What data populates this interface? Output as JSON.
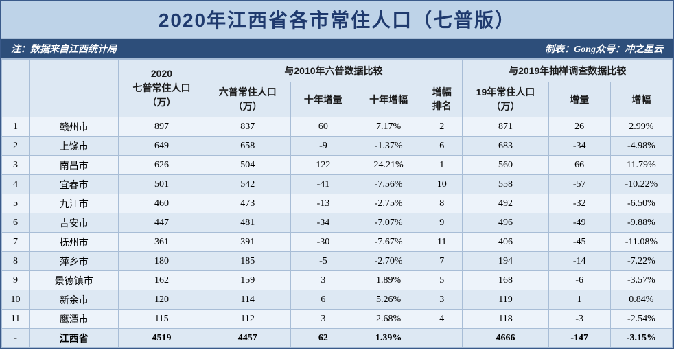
{
  "title": "2020年江西省各市常住人口（七普版）",
  "note_left": "注：数据来自江西统计局",
  "note_right": "制表：Gong众号：冲之星云",
  "headers": {
    "pop2020": "2020\n七普常住人口\n（万）",
    "group2010": "与2010年六普数据比较",
    "group2019": "与2019年抽样调查数据比较",
    "pop2010": "六普常住人口\n（万）",
    "inc10": "十年增量",
    "pct10": "十年增幅",
    "rank10": "增幅\n排名",
    "pop2019": "19年常住人口\n（万）",
    "inc19": "增量",
    "pct19": "增幅"
  },
  "rows": [
    {
      "rank": "1",
      "city": "赣州市",
      "p2020": "897",
      "p2010": "837",
      "inc10": "60",
      "pct10": "7.17%",
      "rk10": "2",
      "p2019": "871",
      "inc19": "26",
      "pct19": "2.99%"
    },
    {
      "rank": "2",
      "city": "上饶市",
      "p2020": "649",
      "p2010": "658",
      "inc10": "-9",
      "pct10": "-1.37%",
      "rk10": "6",
      "p2019": "683",
      "inc19": "-34",
      "pct19": "-4.98%"
    },
    {
      "rank": "3",
      "city": "南昌市",
      "p2020": "626",
      "p2010": "504",
      "inc10": "122",
      "pct10": "24.21%",
      "rk10": "1",
      "p2019": "560",
      "inc19": "66",
      "pct19": "11.79%"
    },
    {
      "rank": "4",
      "city": "宜春市",
      "p2020": "501",
      "p2010": "542",
      "inc10": "-41",
      "pct10": "-7.56%",
      "rk10": "10",
      "p2019": "558",
      "inc19": "-57",
      "pct19": "-10.22%"
    },
    {
      "rank": "5",
      "city": "九江市",
      "p2020": "460",
      "p2010": "473",
      "inc10": "-13",
      "pct10": "-2.75%",
      "rk10": "8",
      "p2019": "492",
      "inc19": "-32",
      "pct19": "-6.50%"
    },
    {
      "rank": "6",
      "city": "吉安市",
      "p2020": "447",
      "p2010": "481",
      "inc10": "-34",
      "pct10": "-7.07%",
      "rk10": "9",
      "p2019": "496",
      "inc19": "-49",
      "pct19": "-9.88%"
    },
    {
      "rank": "7",
      "city": "抚州市",
      "p2020": "361",
      "p2010": "391",
      "inc10": "-30",
      "pct10": "-7.67%",
      "rk10": "11",
      "p2019": "406",
      "inc19": "-45",
      "pct19": "-11.08%"
    },
    {
      "rank": "8",
      "city": "萍乡市",
      "p2020": "180",
      "p2010": "185",
      "inc10": "-5",
      "pct10": "-2.70%",
      "rk10": "7",
      "p2019": "194",
      "inc19": "-14",
      "pct19": "-7.22%"
    },
    {
      "rank": "9",
      "city": "景德镇市",
      "p2020": "162",
      "p2010": "159",
      "inc10": "3",
      "pct10": "1.89%",
      "rk10": "5",
      "p2019": "168",
      "inc19": "-6",
      "pct19": "-3.57%"
    },
    {
      "rank": "10",
      "city": "新余市",
      "p2020": "120",
      "p2010": "114",
      "inc10": "6",
      "pct10": "5.26%",
      "rk10": "3",
      "p2019": "119",
      "inc19": "1",
      "pct19": "0.84%"
    },
    {
      "rank": "11",
      "city": "鹰潭市",
      "p2020": "115",
      "p2010": "112",
      "inc10": "3",
      "pct10": "2.68%",
      "rk10": "4",
      "p2019": "118",
      "inc19": "-3",
      "pct19": "-2.54%"
    }
  ],
  "total": {
    "rank": "-",
    "city": "江西省",
    "p2020": "4519",
    "p2010": "4457",
    "inc10": "62",
    "pct10": "1.39%",
    "rk10": "",
    "p2019": "4666",
    "inc19": "-147",
    "pct19": "-3.15%"
  }
}
